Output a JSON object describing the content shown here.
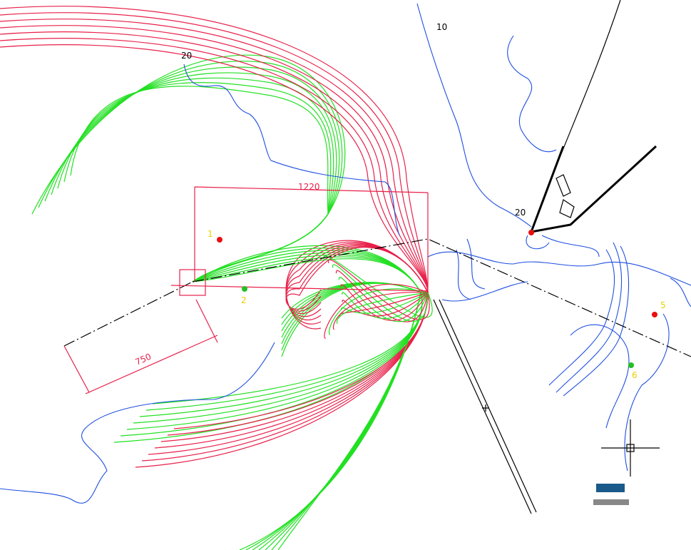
{
  "dimensions": [
    {
      "label": "1220"
    },
    {
      "label": "750"
    }
  ],
  "points": [
    {
      "label": "1"
    },
    {
      "label": "2"
    },
    {
      "label": "5"
    },
    {
      "label": "6"
    }
  ],
  "contours": [
    {
      "label": "20"
    },
    {
      "label": "10"
    },
    {
      "label": "20"
    }
  ]
}
